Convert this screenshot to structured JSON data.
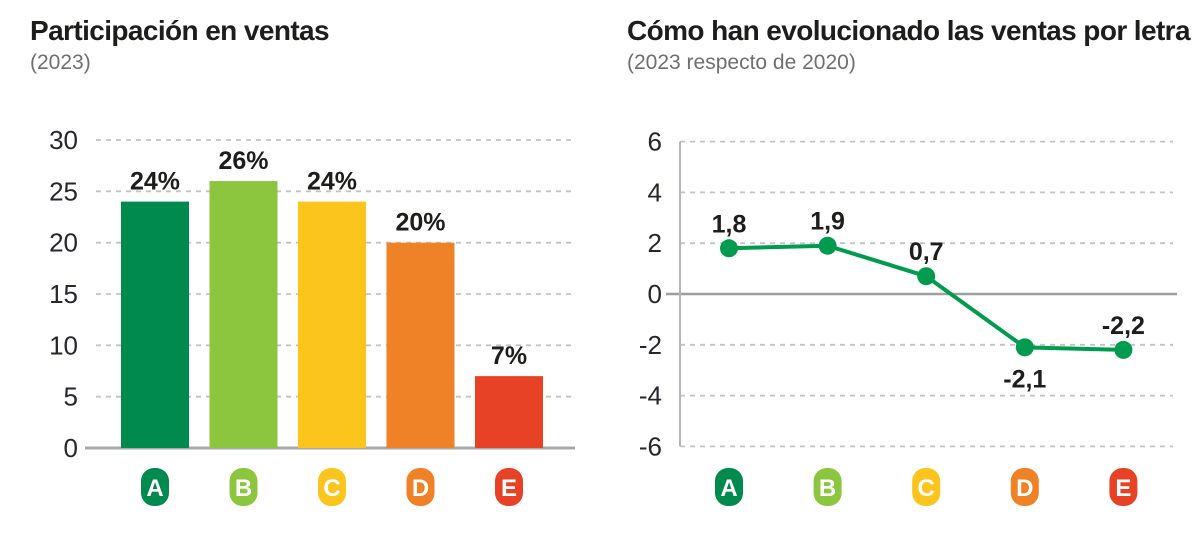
{
  "chart_data": [
    {
      "type": "bar",
      "title": "Participación en ventas",
      "subtitle": "(2023)",
      "categories": [
        "A",
        "B",
        "C",
        "D",
        "E"
      ],
      "values": [
        24,
        26,
        24,
        20,
        7
      ],
      "value_labels": [
        "24%",
        "26%",
        "24%",
        "20%",
        "7%"
      ],
      "category_colors": [
        "#008a4d",
        "#8cc63f",
        "#fbc51d",
        "#ef8126",
        "#e84226"
      ],
      "yticks": [
        30,
        25,
        20,
        15,
        10,
        5,
        0
      ],
      "ylim": [
        0,
        30
      ],
      "grid": "horizontal-dashed",
      "legend": "none",
      "unit": "%"
    },
    {
      "type": "line",
      "title": "Cómo han evolucionado las ventas por letra",
      "subtitle": "(2023 respecto de 2020)",
      "categories": [
        "A",
        "B",
        "C",
        "D",
        "E"
      ],
      "values": [
        1.8,
        1.9,
        0.7,
        -2.1,
        -2.2
      ],
      "value_labels": [
        "1,8",
        "1,9",
        "0,7",
        "-2,1",
        "-2,2"
      ],
      "value_label_positions": [
        "above",
        "above",
        "above",
        "below",
        "above"
      ],
      "line_color": "#009b4e",
      "marker_color": "#009b4e",
      "category_colors": [
        "#008a4d",
        "#8cc63f",
        "#fbc51d",
        "#ef8126",
        "#e84226"
      ],
      "yticks": [
        6,
        4,
        2,
        0,
        -2,
        -4,
        -6
      ],
      "ylim": [
        -6,
        6
      ],
      "grid": "horizontal-dashed",
      "zero_line": true,
      "legend": "none"
    }
  ],
  "style": {
    "title_color": "#1d1d1b",
    "subtitle_color": "#6f6f6e",
    "tick_label_color": "#26262e",
    "value_label_color": "#1d1d1b",
    "grid_color": "#c3c3c3",
    "baseline_color": "#a9a9a9",
    "axis_line_color": "#b5b5b5",
    "badge_letter_color": "#ffffff"
  }
}
